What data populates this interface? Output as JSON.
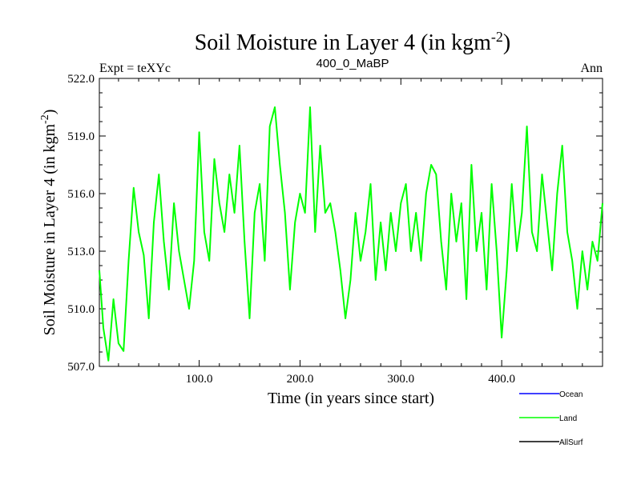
{
  "chart_data": {
    "type": "line",
    "title": "Soil Moisture in Layer 4 (in kgm",
    "title_sup": "-2",
    "title_close": ")",
    "subtitle_left": "Expt = teXYc",
    "subtitle_center": "400_0_MaBP",
    "subtitle_right": "Ann",
    "xlabel": "Time (in years since start)",
    "ylabel": "Soil Moisture in Layer 4 (in kgm",
    "ylabel_sup": "-2",
    "ylabel_close": ")",
    "xlim": [
      1,
      500
    ],
    "ylim": [
      507.0,
      522.0
    ],
    "xticks": [
      100,
      200,
      300,
      400
    ],
    "xtick_labels": [
      "100.0",
      "200.0",
      "300.0",
      "400.0"
    ],
    "yticks": [
      507,
      510,
      513,
      516,
      519,
      522
    ],
    "ytick_labels": [
      "507.0",
      "510.0",
      "513.0",
      "516.0",
      "519.0",
      "522.0"
    ],
    "grid": false,
    "legend_position": "bottom-right",
    "series": [
      {
        "name": "Ocean",
        "color": "#0000ff",
        "values": []
      },
      {
        "name": "Land",
        "color": "#00ff00",
        "x": [
          1,
          5,
          10,
          15,
          20,
          25,
          30,
          35,
          40,
          45,
          50,
          55,
          60,
          65,
          70,
          75,
          80,
          85,
          90,
          95,
          100,
          105,
          110,
          115,
          120,
          125,
          130,
          135,
          140,
          145,
          150,
          155,
          160,
          165,
          170,
          175,
          180,
          185,
          190,
          195,
          200,
          205,
          210,
          215,
          220,
          225,
          230,
          235,
          240,
          245,
          250,
          255,
          260,
          265,
          270,
          275,
          280,
          285,
          290,
          295,
          300,
          305,
          310,
          315,
          320,
          325,
          330,
          335,
          340,
          345,
          350,
          355,
          360,
          365,
          370,
          375,
          380,
          385,
          390,
          395,
          400,
          405,
          410,
          415,
          420,
          425,
          430,
          435,
          440,
          445,
          450,
          455,
          460,
          465,
          470,
          475,
          480,
          485,
          490,
          495,
          500
        ],
        "values": [
          512.0,
          509.0,
          507.3,
          510.5,
          508.2,
          507.8,
          512.5,
          516.3,
          514.0,
          512.8,
          509.5,
          514.5,
          517.0,
          513.5,
          511.0,
          515.5,
          513.0,
          511.5,
          510.0,
          512.5,
          519.2,
          514.0,
          512.5,
          517.8,
          515.5,
          514.0,
          517.0,
          515.0,
          518.5,
          513.5,
          509.5,
          515.0,
          516.5,
          512.5,
          519.5,
          520.5,
          517.5,
          515.0,
          511.0,
          514.5,
          516.0,
          515.0,
          520.5,
          514.0,
          518.5,
          515.0,
          515.5,
          514.0,
          512.0,
          509.5,
          511.5,
          515.0,
          512.5,
          514.0,
          516.5,
          511.5,
          514.5,
          512.0,
          515.0,
          513.0,
          515.5,
          516.5,
          513.0,
          515.0,
          512.5,
          516.0,
          517.5,
          517.0,
          513.5,
          511.0,
          516.0,
          513.5,
          515.5,
          510.5,
          517.5,
          513.0,
          515.0,
          511.0,
          516.5,
          513.0,
          508.5,
          512.0,
          516.5,
          513.0,
          515.0,
          519.5,
          514.0,
          513.0,
          517.0,
          514.5,
          512.0,
          516.0,
          518.5,
          514.0,
          512.5,
          510.0,
          513.0,
          511.0,
          513.5,
          512.5,
          515.5
        ]
      },
      {
        "name": "AllSurf",
        "color": "#000000",
        "values": []
      }
    ]
  }
}
